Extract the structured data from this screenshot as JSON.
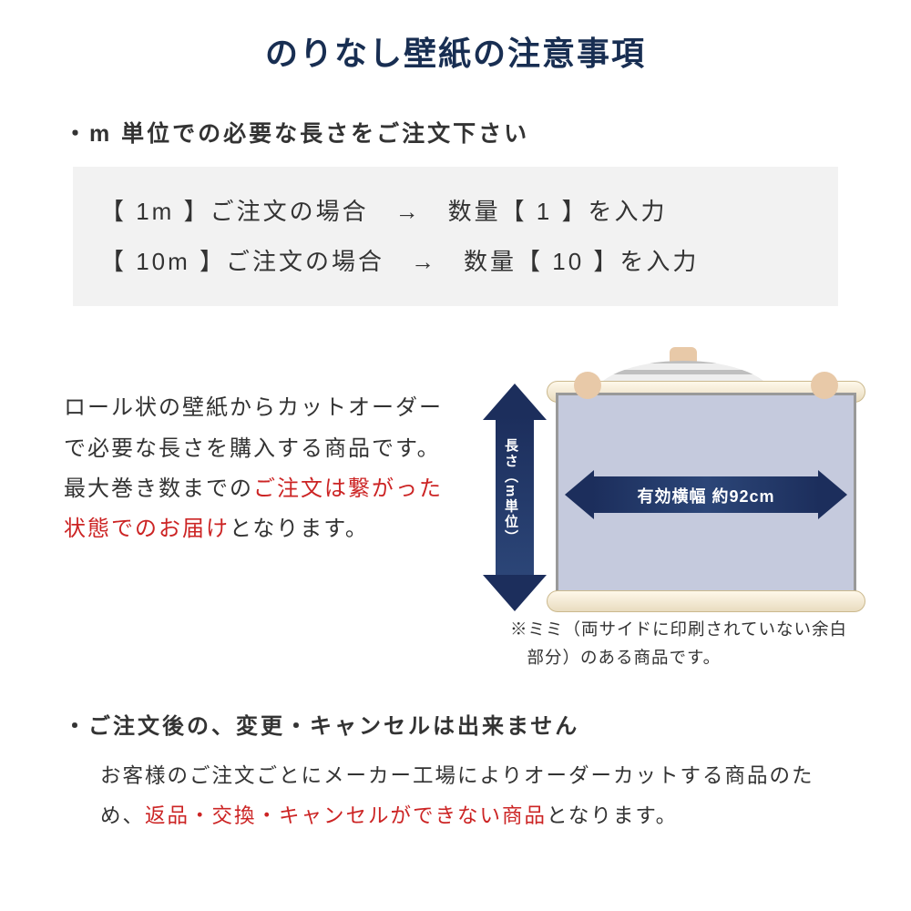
{
  "colors": {
    "title_navy": "#182e52",
    "body_text": "#333333",
    "emphasis_red": "#cc2424",
    "example_bg": "#f2f2f2",
    "arrow_fill": "#1c2e5c",
    "arrow_text": "#ffffff",
    "sheet_fill": "#c5cadd",
    "roll_fill": "#f4ecd6"
  },
  "title": "のりなし壁紙の注意事項",
  "section1": {
    "heading": "・m 単位での必要な長さをご注文下さい",
    "examples": [
      "【 1m 】ご注文の場合　→　数量【 1 】を入力",
      "【 10m 】ご注文の場合　→　数量【 10 】を入力"
    ]
  },
  "description": {
    "pre": "ロール状の壁紙からカットオーダーで必要な長さを購入する商品です。最大巻き数までの",
    "emph": "ご注文は繋がった状態でのお届け",
    "post": "となります。"
  },
  "diagram": {
    "vertical_arrow_label": "長さ（m単位）",
    "horizontal_arrow_label": "有効横幅 約92cm",
    "mimi_note": "※ミミ（両サイドに印刷されていない余白部分）のある商品です。"
  },
  "section2": {
    "heading": "・ご注文後の、変更・キャンセルは出来ません",
    "body_pre": "お客様のご注文ごとにメーカー工場によりオーダーカットする商品のため、",
    "body_emph": "返品・交換・キャンセルができない商品",
    "body_post": "となります。"
  }
}
